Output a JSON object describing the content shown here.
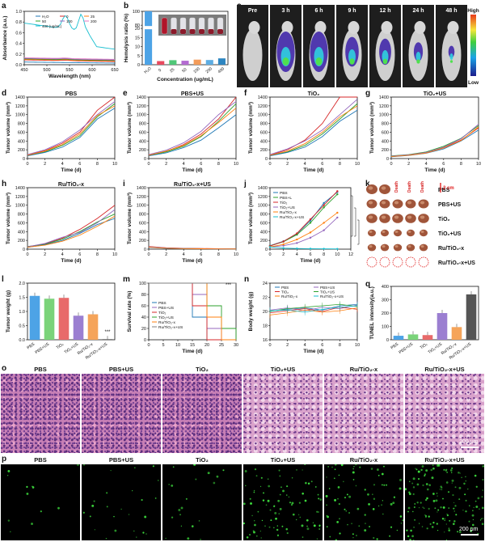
{
  "labels": {
    "a": "a",
    "b": "b",
    "c": "c",
    "d": "d",
    "e": "e",
    "f": "f",
    "g": "g",
    "h": "h",
    "i": "i",
    "j": "j",
    "k": "k",
    "l": "l",
    "m": "m",
    "n": "n",
    "q": "q",
    "o": "o",
    "p": "p"
  },
  "panel_a": {
    "ylabel": "Absorbance (a.u.)",
    "xlabel": "Wavelength (nm)",
    "xticks": [
      "450",
      "500",
      "550",
      "600",
      "650"
    ],
    "yticks": [
      "0.0",
      "0.2",
      "0.4",
      "0.6",
      "0.8",
      "1.0"
    ],
    "legend": [
      "H₂O",
      "0",
      "25",
      "50",
      "100",
      "200",
      "400 (ug/mL)"
    ],
    "colors": [
      "#1f77b4",
      "#d62728",
      "#ff7f0e",
      "#2ca02c",
      "#9467bd",
      "#e377c2",
      "#17becf"
    ]
  },
  "panel_b": {
    "ylabel": "Hemolysis ratio (%)",
    "xlabel": "Concentration (ug/mL)",
    "categories": [
      "H₂O",
      "0",
      "25",
      "50",
      "100",
      "200",
      "400"
    ],
    "values": [
      100,
      2,
      2.5,
      2.2,
      2.8,
      2.6,
      3.5
    ],
    "yticks": [
      "0",
      "5",
      "10",
      "15",
      "20",
      "80",
      "100"
    ],
    "colors": [
      "#4da3e6",
      "#e84a5f",
      "#50c878",
      "#b36bd1",
      "#f39c5a",
      "#5dade2",
      "#2e86c1"
    ]
  },
  "panel_c": {
    "timepoints": [
      "Pre",
      "3 h",
      "6 h",
      "9 h",
      "12 h",
      "24 h",
      "48 h"
    ],
    "scale_high": "High",
    "scale_low": "Low"
  },
  "tumor_axis": {
    "ylabel": "Tumor volume (mm³)",
    "xlabel": "Time (d)",
    "xticks": [
      "0",
      "2",
      "4",
      "6",
      "8",
      "10"
    ],
    "yticks": [
      "0",
      "200",
      "400",
      "600",
      "800",
      "1000",
      "1200",
      "1400"
    ]
  },
  "tumor_titles": {
    "d": "PBS",
    "e": "PBS+US",
    "f": "TiO₂",
    "g": "TiO₂+US",
    "h": "Ru/TiO₂-x",
    "i": "Ru/TiO₂-x+US"
  },
  "chart_data": [
    {
      "panel": "d",
      "type": "line",
      "x": [
        0,
        2,
        4,
        6,
        8,
        10
      ],
      "ylim": [
        0,
        1400
      ],
      "series": [
        {
          "values": [
            80,
            180,
            350,
            600,
            1100,
            1400
          ]
        },
        {
          "values": [
            70,
            150,
            300,
            520,
            950,
            1250
          ]
        },
        {
          "values": [
            60,
            140,
            260,
            480,
            900,
            1150
          ]
        },
        {
          "values": [
            90,
            200,
            380,
            650,
            1000,
            1300
          ]
        },
        {
          "values": [
            75,
            170,
            320,
            560,
            980,
            1200
          ]
        }
      ]
    },
    {
      "panel": "e",
      "type": "line",
      "x": [
        0,
        2,
        4,
        6,
        8,
        10
      ],
      "ylim": [
        0,
        1400
      ],
      "series": [
        {
          "values": [
            80,
            160,
            320,
            560,
            900,
            1400
          ]
        },
        {
          "values": [
            70,
            150,
            280,
            500,
            850,
            1250
          ]
        },
        {
          "values": [
            60,
            130,
            250,
            420,
            700,
            1000
          ]
        },
        {
          "values": [
            90,
            190,
            360,
            620,
            1000,
            1300
          ]
        },
        {
          "values": [
            75,
            170,
            300,
            520,
            820,
            1150
          ]
        }
      ]
    },
    {
      "panel": "f",
      "type": "line",
      "x": [
        0,
        2,
        4,
        6,
        8,
        10
      ],
      "ylim": [
        0,
        1400
      ],
      "series": [
        {
          "values": [
            80,
            200,
            420,
            800,
            1400,
            1400
          ]
        },
        {
          "values": [
            70,
            150,
            300,
            560,
            900,
            1250
          ]
        },
        {
          "values": [
            60,
            140,
            260,
            500,
            850,
            1100
          ]
        },
        {
          "values": [
            90,
            220,
            400,
            650,
            1000,
            1350
          ]
        },
        {
          "values": [
            75,
            170,
            340,
            600,
            950,
            1200
          ]
        }
      ]
    },
    {
      "panel": "g",
      "type": "line",
      "x": [
        0,
        2,
        4,
        6,
        8,
        10
      ],
      "ylim": [
        0,
        1400
      ],
      "series": [
        {
          "values": [
            50,
            80,
            130,
            250,
            420,
            700
          ]
        },
        {
          "values": [
            60,
            90,
            150,
            280,
            460,
            750
          ]
        },
        {
          "values": [
            40,
            70,
            120,
            220,
            400,
            650
          ]
        },
        {
          "values": [
            55,
            85,
            140,
            260,
            450,
            780
          ]
        },
        {
          "values": [
            45,
            75,
            125,
            240,
            410,
            720
          ]
        }
      ]
    },
    {
      "panel": "h",
      "type": "line",
      "x": [
        0,
        2,
        4,
        6,
        8,
        10
      ],
      "ylim": [
        0,
        1400
      ],
      "series": [
        {
          "values": [
            50,
            120,
            250,
            450,
            700,
            1000
          ]
        },
        {
          "values": [
            60,
            110,
            230,
            400,
            620,
            800
          ]
        },
        {
          "values": [
            40,
            100,
            200,
            360,
            560,
            700
          ]
        },
        {
          "values": [
            55,
            130,
            270,
            380,
            600,
            900
          ]
        },
        {
          "values": [
            45,
            90,
            180,
            320,
            520,
            750
          ]
        }
      ]
    },
    {
      "panel": "i",
      "type": "line",
      "x": [
        0,
        2,
        4,
        6,
        8,
        10
      ],
      "ylim": [
        0,
        1400
      ],
      "series": [
        {
          "values": [
            60,
            30,
            20,
            15,
            10,
            8
          ]
        },
        {
          "values": [
            50,
            25,
            15,
            10,
            8,
            5
          ]
        },
        {
          "values": [
            40,
            20,
            10,
            8,
            5,
            3
          ]
        },
        {
          "values": [
            55,
            28,
            18,
            12,
            9,
            6
          ]
        },
        {
          "values": [
            45,
            22,
            12,
            9,
            6,
            4
          ]
        }
      ]
    },
    {
      "panel": "j",
      "type": "line",
      "x": [
        0,
        2,
        4,
        6,
        8,
        10
      ],
      "ylim": [
        0,
        1400
      ],
      "series": [
        {
          "name": "PBS",
          "values": [
            80,
            180,
            350,
            650,
            1050,
            1300
          ]
        },
        {
          "name": "PBS+L",
          "values": [
            75,
            170,
            330,
            600,
            950,
            1250
          ]
        },
        {
          "name": "TiO₂",
          "values": [
            70,
            175,
            360,
            680,
            1000,
            1320
          ]
        },
        {
          "name": "TiO₂+US",
          "values": [
            50,
            80,
            140,
            260,
            430,
            720
          ]
        },
        {
          "name": "Ru/TiO₂-x",
          "values": [
            50,
            110,
            220,
            380,
            600,
            830
          ]
        },
        {
          "name": "Ru/TiO₂-x+US",
          "values": [
            50,
            25,
            15,
            10,
            8,
            5
          ]
        }
      ]
    },
    {
      "panel": "l",
      "type": "bar",
      "categories": [
        "PBS",
        "PBS+US",
        "TiO₂",
        "TiO₂+US",
        "Ru/TiO₂-x",
        "Ru/TiO₂-x+US"
      ],
      "values": [
        1.55,
        1.45,
        1.48,
        0.85,
        0.9,
        0.02
      ],
      "ylim": [
        0,
        2.0
      ]
    },
    {
      "panel": "m",
      "type": "line",
      "x": [
        0,
        5,
        10,
        15,
        20,
        25,
        30
      ],
      "ylim": [
        0,
        100
      ],
      "series": [
        {
          "name": "PBS",
          "values": [
            100,
            100,
            100,
            40,
            0,
            0,
            0
          ]
        },
        {
          "name": "PBS+US",
          "values": [
            100,
            100,
            100,
            80,
            20,
            0,
            0
          ]
        },
        {
          "name": "TiO₂",
          "values": [
            100,
            100,
            100,
            60,
            0,
            0,
            0
          ]
        },
        {
          "name": "TiO₂+US",
          "values": [
            100,
            100,
            100,
            100,
            60,
            20,
            0
          ]
        },
        {
          "name": "Ru/TiO₂-x",
          "values": [
            100,
            100,
            100,
            100,
            40,
            0,
            0
          ]
        },
        {
          "name": "Ru/TiO₂-x+US",
          "values": [
            100,
            100,
            100,
            100,
            100,
            100,
            100
          ]
        }
      ]
    },
    {
      "panel": "n",
      "type": "line",
      "x": [
        0,
        2,
        4,
        6,
        8,
        10
      ],
      "ylim": [
        16,
        24
      ],
      "series": [
        {
          "name": "PBS",
          "values": [
            20,
            20.3,
            20.5,
            20.2,
            20.8,
            21
          ]
        },
        {
          "name": "PBS+US",
          "values": [
            20.2,
            20.5,
            20.1,
            20.6,
            20.4,
            20.9
          ]
        },
        {
          "name": "TiO₂",
          "values": [
            19.8,
            20.1,
            20.4,
            20.0,
            20.6,
            20.3
          ]
        },
        {
          "name": "TiO₂+US",
          "values": [
            20,
            20.4,
            20.6,
            20.8,
            21,
            20.7
          ]
        },
        {
          "name": "Ru/TiO₂-x",
          "values": [
            19.5,
            19.8,
            20.2,
            19.9,
            20.1,
            20.5
          ]
        },
        {
          "name": "Ru/TiO₂-x+US",
          "values": [
            20.1,
            20.2,
            19.9,
            20.3,
            20.6,
            20.8
          ]
        }
      ]
    },
    {
      "panel": "q",
      "type": "bar",
      "categories": [
        "PBS",
        "PBS+US",
        "TiO₂",
        "TiO₂+US",
        "Ru/TiO₂-x",
        "Ru/TiO₂-x+US"
      ],
      "values": [
        30,
        40,
        35,
        200,
        95,
        340
      ],
      "ylim": [
        0,
        400
      ]
    }
  ],
  "panel_j": {
    "ylabel": "Tumor volume (mm³)",
    "xlabel": "Time (d)",
    "legend": [
      "PBS",
      "PBS+L",
      "TiO₂",
      "TiO₂+US",
      "Ru/TiO₂-x",
      "Ru/TiO₂-x+US"
    ],
    "colors": [
      "#1f77b4",
      "#2ca02c",
      "#d62728",
      "#9467bd",
      "#ff7f0e",
      "#17becf"
    ]
  },
  "panel_k": {
    "rows": [
      "PBS",
      "PBS+US",
      "TiO₂",
      "TiO₂+US",
      "Ru/TiO₂-x",
      "Ru/TiO₂-x+US"
    ],
    "scale": "2 cm",
    "death": "Death"
  },
  "panel_l": {
    "ylabel": "Tumor weight (g)",
    "yticks": [
      "0.0",
      "0.5",
      "1.0",
      "1.5",
      "2.0"
    ],
    "colors": [
      "#4da3e6",
      "#7ad37a",
      "#e86a6a",
      "#9b7fd1",
      "#f5a45a",
      "#555555"
    ],
    "sig": "***"
  },
  "panel_m": {
    "ylabel": "Survival rate (%)",
    "xlabel": "Time (d)",
    "xticks": [
      "0",
      "5",
      "10",
      "15",
      "20",
      "25",
      "30"
    ],
    "yticks": [
      "0",
      "20",
      "40",
      "60",
      "80",
      "100"
    ],
    "legend": [
      "PBS",
      "PBS+US",
      "TiO₂",
      "TiO₂+US",
      "Ru/TiO₂-x",
      "Ru/TiO₂-x+US"
    ],
    "colors": [
      "#1f77b4",
      "#9467bd",
      "#d62728",
      "#2ca02c",
      "#ff7f0e",
      "#7f7f7f"
    ],
    "sig": "***"
  },
  "panel_n": {
    "ylabel": "Body weight (g)",
    "xlabel": "Time (d)",
    "xticks": [
      "0",
      "2",
      "4",
      "6",
      "8",
      "10"
    ],
    "yticks": [
      "16",
      "18",
      "20",
      "22",
      "24"
    ],
    "legend": [
      "PBS",
      "PBS+US",
      "TiO₂",
      "TiO₂+US",
      "Ru/TiO₂-x",
      "Ru/TiO₂-x+US"
    ],
    "colors": [
      "#1f77b4",
      "#9467bd",
      "#d62728",
      "#2ca02c",
      "#ff7f0e",
      "#17becf"
    ]
  },
  "panel_q": {
    "ylabel": "TUNEL intensity(a.u.)",
    "yticks": [
      "0",
      "100",
      "200",
      "300",
      "400"
    ],
    "colors": [
      "#4da3e6",
      "#7ad37a",
      "#e86a6a",
      "#9b7fd1",
      "#f5a45a",
      "#555555"
    ]
  },
  "histology": {
    "titles": [
      "PBS",
      "PBS+US",
      "TiO₂",
      "TiO₂+US",
      "Ru/TiO₂-x",
      "Ru/TiO₂-x+US"
    ],
    "scale": "200 μm"
  }
}
